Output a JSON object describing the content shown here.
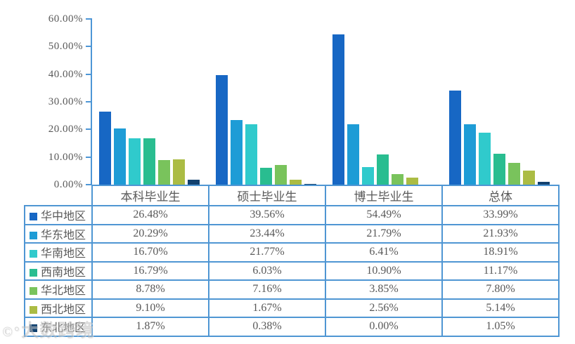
{
  "chart_data": {
    "type": "bar",
    "title": "",
    "categories": [
      "本科毕业生",
      "硕士毕业生",
      "博士毕业生",
      "总体"
    ],
    "series": [
      {
        "name": "华中地区",
        "color": "#1767c4",
        "values": [
          26.48,
          39.56,
          54.49,
          33.99
        ]
      },
      {
        "name": "华东地区",
        "color": "#1e9cd6",
        "values": [
          20.29,
          23.44,
          21.79,
          21.93
        ]
      },
      {
        "name": "华南地区",
        "color": "#30cacc",
        "values": [
          16.7,
          21.77,
          6.41,
          18.91
        ]
      },
      {
        "name": "西南地区",
        "color": "#29bd90",
        "values": [
          16.79,
          6.03,
          10.9,
          11.17
        ]
      },
      {
        "name": "华北地区",
        "color": "#79c35c",
        "values": [
          8.78,
          7.16,
          3.85,
          7.8
        ]
      },
      {
        "name": "西北地区",
        "color": "#abbc44",
        "values": [
          9.1,
          1.67,
          2.56,
          5.14
        ]
      },
      {
        "name": "东北地区",
        "color": "#11416f",
        "values": [
          1.87,
          0.38,
          0.0,
          1.05
        ]
      }
    ],
    "y_axis": {
      "min": 0,
      "max": 60,
      "step": 10,
      "tick_labels": [
        "60.00%",
        "50.00%",
        "40.00%",
        "30.00%",
        "20.00%",
        "10.00%",
        "0.00%"
      ]
    },
    "xlabel": "",
    "ylabel": "",
    "grid": false,
    "legend_position": "table-left-column"
  },
  "table": {
    "column_headers": [
      "本科毕业生",
      "硕士毕业生",
      "博士毕业生",
      "总体"
    ],
    "rows": [
      {
        "region": "华中地区",
        "values": [
          "26.48%",
          "39.56%",
          "54.49%",
          "33.99%"
        ]
      },
      {
        "region": "华东地区",
        "values": [
          "20.29%",
          "23.44%",
          "21.79%",
          "21.93%"
        ]
      },
      {
        "region": "华南地区",
        "values": [
          "16.70%",
          "21.77%",
          "6.41%",
          "18.91%"
        ]
      },
      {
        "region": "西南地区",
        "values": [
          "16.79%",
          "6.03%",
          "10.90%",
          "11.17%"
        ]
      },
      {
        "region": "华北地区",
        "values": [
          "8.78%",
          "7.16%",
          "3.85%",
          "7.80%"
        ]
      },
      {
        "region": "西北地区",
        "values": [
          "9.10%",
          "1.67%",
          "2.56%",
          "5.14%"
        ]
      },
      {
        "region": "东北地区",
        "values": [
          "1.87%",
          "0.38%",
          "0.00%",
          "1.05%"
        ]
      }
    ]
  },
  "watermark": {
    "icon": "©°",
    "text": "大数跨境"
  },
  "colors": {
    "axis": "#4d96d6",
    "table_border": "#4f96d3",
    "text": "#595959"
  }
}
